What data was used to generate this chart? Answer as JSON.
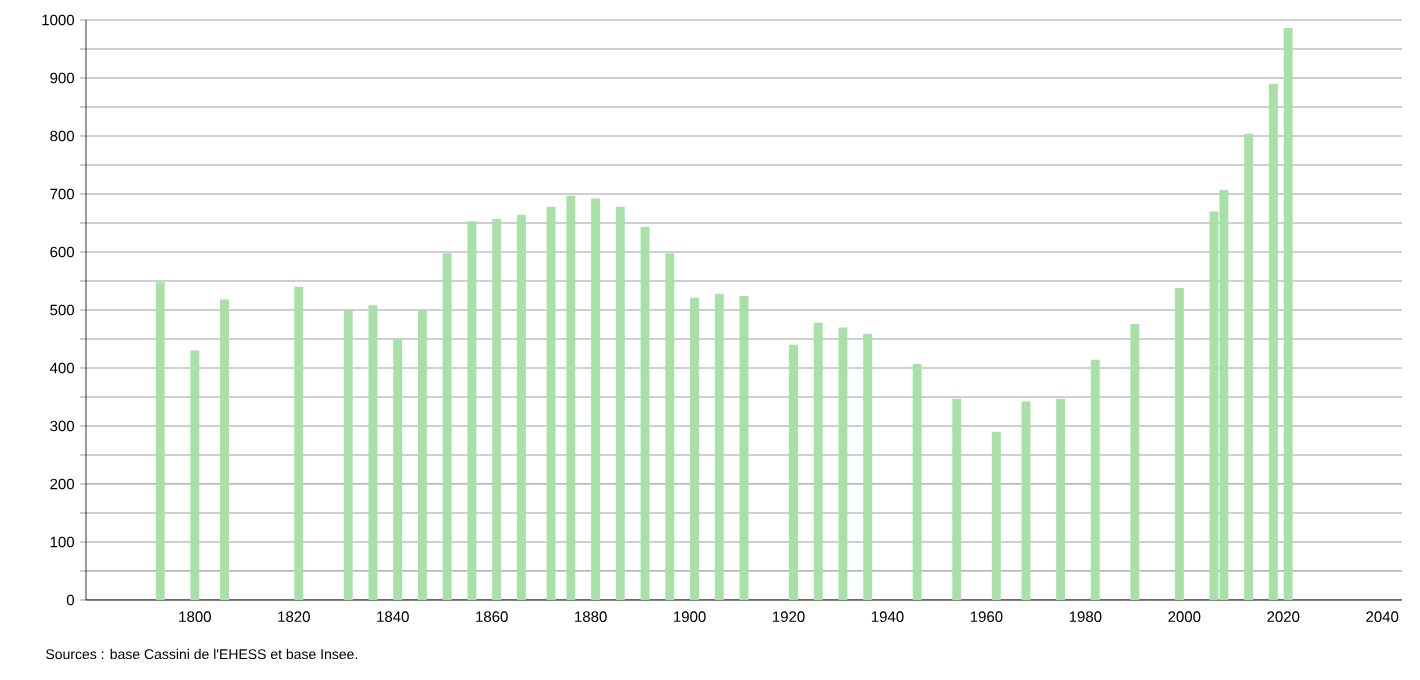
{
  "chart_data": {
    "type": "bar",
    "x": [
      1793,
      1800,
      1806,
      1821,
      1831,
      1836,
      1841,
      1846,
      1851,
      1856,
      1861,
      1866,
      1872,
      1876,
      1881,
      1886,
      1891,
      1896,
      1901,
      1906,
      1911,
      1921,
      1926,
      1931,
      1936,
      1946,
      1954,
      1962,
      1968,
      1975,
      1982,
      1990,
      1999,
      2006,
      2008,
      2013,
      2018,
      2021
    ],
    "values": [
      548,
      430,
      518,
      540,
      500,
      508,
      450,
      500,
      598,
      653,
      657,
      664,
      678,
      697,
      692,
      678,
      643,
      598,
      521,
      528,
      524,
      440,
      478,
      470,
      459,
      407,
      347,
      290,
      342,
      347,
      414,
      476,
      538,
      670,
      707,
      804,
      890,
      986
    ],
    "color": "#a8e0a8",
    "xlim": [
      1778,
      2044
    ],
    "xticks": [
      1800,
      1820,
      1840,
      1860,
      1880,
      1900,
      1920,
      1940,
      1960,
      1980,
      2000,
      2020,
      2040
    ],
    "ylim": [
      0,
      1000
    ],
    "yticks": [
      0,
      {
        "value": 50,
        "label": null
      },
      100,
      {
        "value": 150,
        "label": null
      },
      200,
      {
        "value": 250,
        "label": null
      },
      300,
      {
        "value": 350,
        "label": null
      },
      400,
      {
        "value": 450,
        "label": null
      },
      500,
      {
        "value": 550,
        "label": null
      },
      600,
      {
        "value": 650,
        "label": null
      },
      700,
      {
        "value": 750,
        "label": null
      },
      800,
      {
        "value": 850,
        "label": null
      },
      900,
      {
        "value": 950,
        "label": null
      },
      1000
    ],
    "grid": "y",
    "annotations": [
      "Sources : base Cassini de l'EHESS et base Insee."
    ]
  }
}
